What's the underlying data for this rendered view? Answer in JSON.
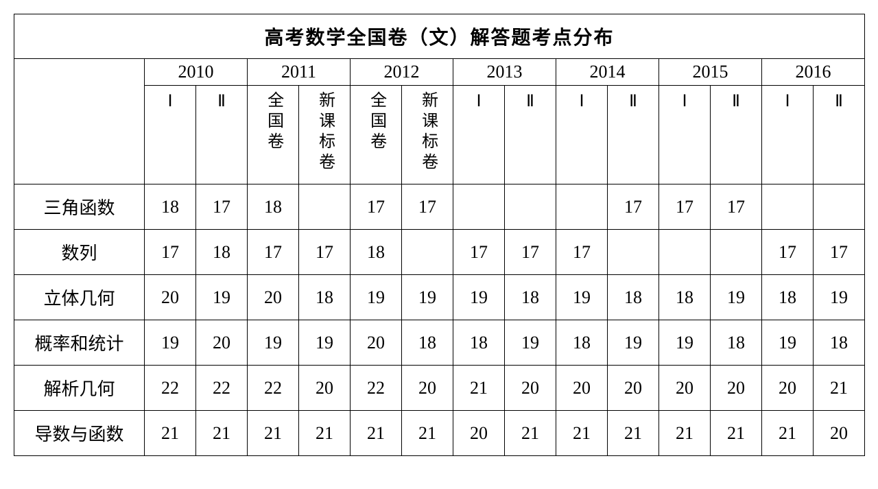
{
  "table": {
    "title": "高考数学全国卷（文）解答题考点分布",
    "years": [
      "2010",
      "2011",
      "2012",
      "2013",
      "2014",
      "2015",
      "2016"
    ],
    "subheaders": {
      "y2010": [
        "Ⅰ",
        "Ⅱ"
      ],
      "y2011": [
        "全国卷",
        "新课标卷"
      ],
      "y2012": [
        "全国卷",
        "新课标卷"
      ],
      "y2013": [
        "Ⅰ",
        "Ⅱ"
      ],
      "y2014": [
        "Ⅰ",
        "Ⅱ"
      ],
      "y2015": [
        "Ⅰ",
        "Ⅱ"
      ],
      "y2016": [
        "Ⅰ",
        "Ⅱ"
      ]
    },
    "rows": [
      {
        "label": "三角函数",
        "values": [
          "18",
          "17",
          "18",
          "",
          "17",
          "17",
          "",
          "",
          "",
          "17",
          "17",
          "17",
          "",
          ""
        ]
      },
      {
        "label": "数列",
        "values": [
          "17",
          "18",
          "17",
          "17",
          "18",
          "",
          "17",
          "17",
          "17",
          "",
          "",
          "",
          "17",
          "17"
        ]
      },
      {
        "label": "立体几何",
        "values": [
          "20",
          "19",
          "20",
          "18",
          "19",
          "19",
          "19",
          "18",
          "19",
          "18",
          "18",
          "19",
          "18",
          "19"
        ]
      },
      {
        "label": "概率和统计",
        "values": [
          "19",
          "20",
          "19",
          "19",
          "20",
          "18",
          "18",
          "19",
          "18",
          "19",
          "19",
          "18",
          "19",
          "18"
        ]
      },
      {
        "label": "解析几何",
        "values": [
          "22",
          "22",
          "22",
          "20",
          "22",
          "20",
          "21",
          "20",
          "20",
          "20",
          "20",
          "20",
          "20",
          "21"
        ]
      },
      {
        "label": "导数与函数",
        "values": [
          "21",
          "21",
          "21",
          "21",
          "21",
          "21",
          "20",
          "21",
          "21",
          "21",
          "21",
          "21",
          "21",
          "20"
        ]
      }
    ],
    "styling": {
      "border_color": "#000000",
      "border_width": 1.5,
      "background_color": "#ffffff",
      "text_color": "#000000",
      "title_fontsize": 28,
      "year_fontsize": 26,
      "subheader_fontsize": 24,
      "label_fontsize": 26,
      "data_fontsize": 26,
      "font_family_cn": "SimSun",
      "font_family_num": "Times New Roman",
      "first_col_width": 190,
      "data_col_width": 75
    }
  }
}
